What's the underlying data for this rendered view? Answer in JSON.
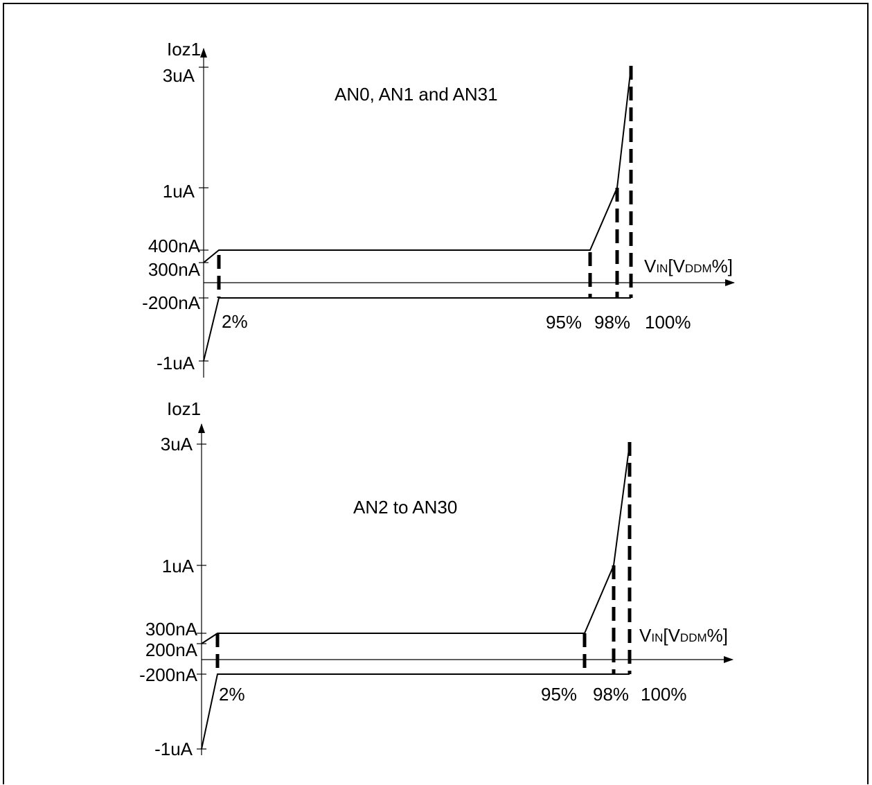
{
  "diagrams": [
    {
      "title": "AN0, AN1 and AN31",
      "y_axis_label": "Ioz1",
      "x_axis_label": {
        "v": "V",
        "in": "IN",
        "bracket_open": "[V",
        "ddm": "DDM",
        "percent_close": "%]"
      },
      "y_ticks": {
        "top": "3uA",
        "one": "1uA",
        "upper": "400nA",
        "lower": "300nA",
        "neg": "-200nA",
        "bottom": "-1uA"
      },
      "x_ticks": {
        "p2": "2%",
        "p95": "95%",
        "p98": "98%",
        "p100": "100%"
      }
    },
    {
      "title": "AN2 to AN30",
      "y_axis_label": "Ioz1",
      "x_axis_label": {
        "v": "V",
        "in": "IN",
        "bracket_open": "[V",
        "ddm": "DDM",
        "percent_close": "%]"
      },
      "y_ticks": {
        "top": "3uA",
        "one": "1uA",
        "upper": "300nA",
        "lower": "200nA",
        "neg": "-200nA",
        "bottom": "-1uA"
      },
      "x_ticks": {
        "p2": "2%",
        "p95": "95%",
        "p98": "98%",
        "p100": "100%"
      }
    }
  ]
}
